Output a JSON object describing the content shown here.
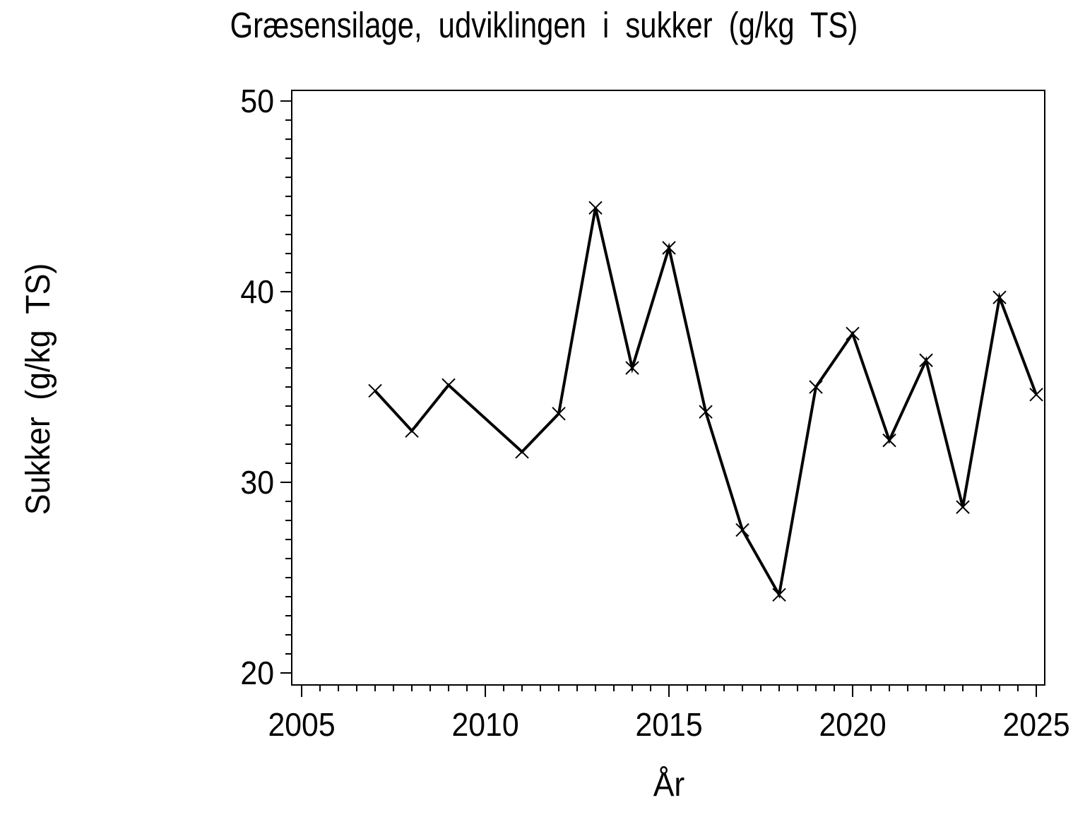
{
  "chart_data": {
    "type": "line",
    "title": "Græsensilage, udviklingen i sukker (g/kg TS)",
    "xlabel": "År",
    "ylabel": "Sukker (g/kg TS)",
    "x": [
      2007,
      2008,
      2009,
      2011,
      2012,
      2013,
      2014,
      2015,
      2016,
      2017,
      2018,
      2019,
      2020,
      2021,
      2022,
      2023,
      2024,
      2025
    ],
    "values": [
      34.8,
      32.7,
      35.1,
      31.6,
      33.6,
      44.4,
      36.0,
      42.3,
      33.7,
      27.5,
      24.1,
      35.0,
      37.8,
      32.2,
      36.4,
      28.7,
      39.7,
      34.6
    ],
    "marker": "x",
    "line_color": "#000000",
    "marker_color": "#000000",
    "background_color": "#ffffff",
    "xlim": [
      2004.73,
      2025.23
    ],
    "ylim": [
      19.37,
      50.56
    ],
    "x_major_ticks": [
      2005,
      2010,
      2015,
      2020,
      2025
    ],
    "x_tick_labels": [
      "2005",
      "2010",
      "2015",
      "2020",
      "2025"
    ],
    "x_minor_step": 0.5,
    "y_major_ticks": [
      20,
      30,
      40,
      50
    ],
    "y_tick_labels": [
      "20",
      "30",
      "40",
      "50"
    ],
    "y_minor_step": 1,
    "grid": "off",
    "legend": "none",
    "frame": "box"
  }
}
